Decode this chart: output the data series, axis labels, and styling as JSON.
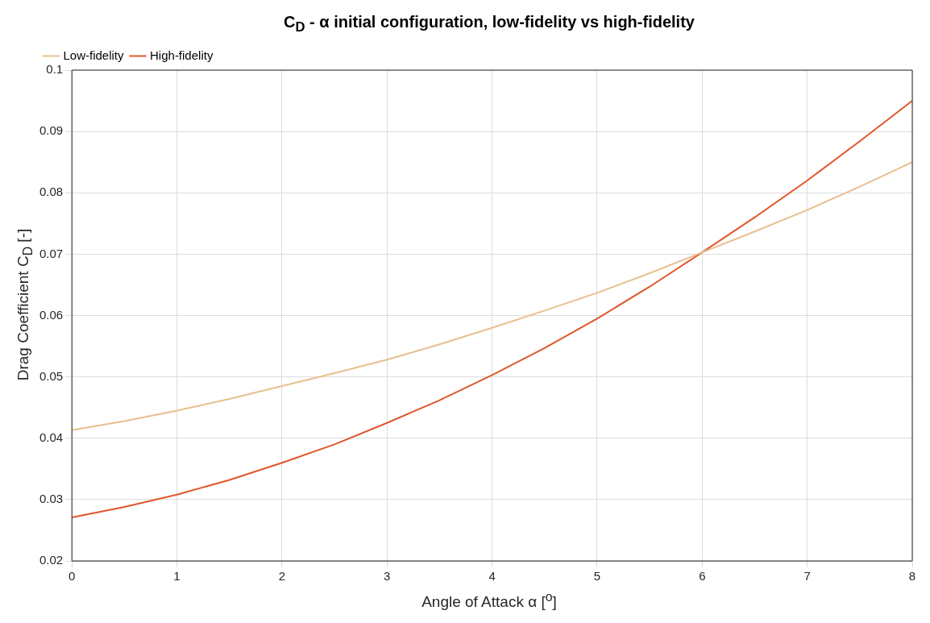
{
  "chart_data": {
    "type": "line",
    "title": "C$_{D}$ - α initial configuration, low-fidelity vs high-fidelity",
    "xlabel": "Angle of Attack α [$^{o}$]",
    "ylabel": "Drag Coefficient C$_{D}$ [-]",
    "x": [
      0,
      0.5,
      1,
      1.5,
      2,
      2.5,
      3,
      3.5,
      4,
      4.5,
      5,
      5.5,
      6,
      6.5,
      7,
      7.5,
      8
    ],
    "series": [
      {
        "name": "Low-fidelity",
        "color": "#e8bf8e",
        "values": [
          0.0413,
          0.0428,
          0.0445,
          0.0464,
          0.0485,
          0.0506,
          0.0528,
          0.0553,
          0.058,
          0.0608,
          0.0637,
          0.0669,
          0.0703,
          0.0737,
          0.0772,
          0.081,
          0.085
        ]
      },
      {
        "name": "High-fidelity",
        "color": "#e0562a",
        "values": [
          0.0271,
          0.0288,
          0.0308,
          0.0332,
          0.036,
          0.039,
          0.0425,
          0.0462,
          0.0503,
          0.0547,
          0.0595,
          0.0647,
          0.0703,
          0.076,
          0.082,
          0.0884,
          0.095
        ]
      }
    ],
    "xlim": [
      0,
      8
    ],
    "xticks": [
      0,
      1,
      2,
      3,
      4,
      5,
      6,
      7,
      8
    ],
    "ylim": [
      0.02,
      0.1
    ],
    "yticks": [
      0.02,
      0.03,
      0.04,
      0.05,
      0.06,
      0.07,
      0.08,
      0.09,
      0.1
    ],
    "grid": true,
    "legend": "top left",
    "marker": "none",
    "line_style": "solid"
  }
}
